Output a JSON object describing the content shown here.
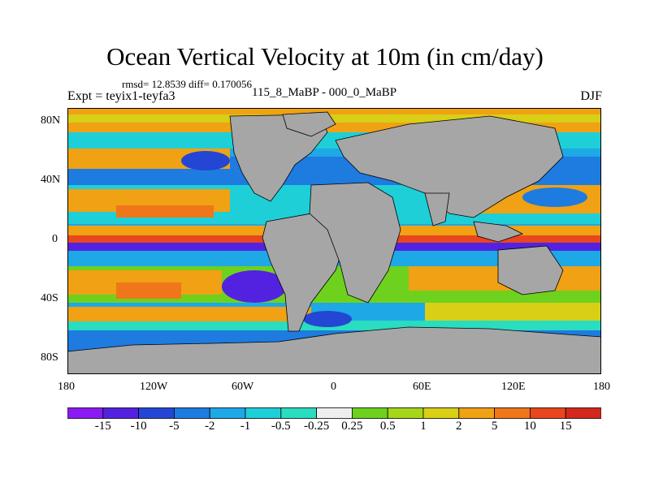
{
  "title": "Ocean Vertical Velocity at 10m (in cm/day)",
  "stats": "rmsd= 12.8539 diff= 0.170056",
  "experiment": "Expt = teyix1-teyfa3",
  "subtitle": "115_8_MaBP - 000_0_MaBP",
  "season": "DJF",
  "y_axis": {
    "ticks": [
      "80N",
      "40N",
      "0",
      "40S",
      "80S"
    ]
  },
  "x_axis": {
    "ticks": [
      "180",
      "120W",
      "60W",
      "0",
      "60E",
      "120E",
      "180"
    ]
  },
  "colorbar": {
    "labels": [
      "-15",
      "-10",
      "-5",
      "-2",
      "-1",
      "-0.5",
      "-0.25",
      "0.25",
      "0.5",
      "1",
      "2",
      "5",
      "10",
      "15"
    ],
    "colors": [
      "#8C1AF2",
      "#5322E0",
      "#2346D4",
      "#1E7BE0",
      "#1EA8E6",
      "#1ECFD8",
      "#2ADCC0",
      "#EEEEEE",
      "#6ED11E",
      "#A6D61A",
      "#D8CF16",
      "#F0A114",
      "#F0761A",
      "#E8461E",
      "#D4281E"
    ]
  },
  "colors": {
    "land": "#A6A6A6",
    "coast": "#000000"
  }
}
